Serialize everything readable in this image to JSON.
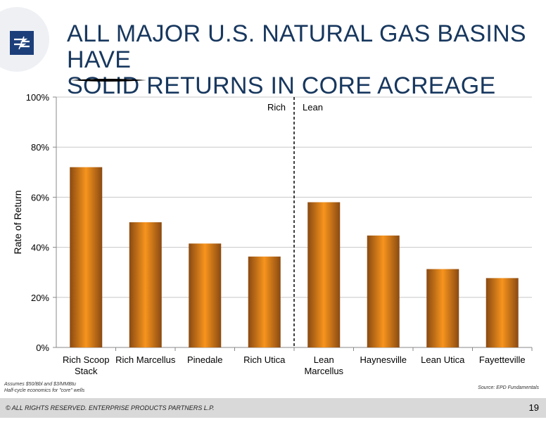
{
  "slide": {
    "title_line1": "ALL MAJOR U.S. NATURAL GAS BASINS HAVE",
    "title_line2": "SOLID RETURNS IN CORE ACREAGE",
    "footnote_line1": "Assumes $50/Bbl and $3/MMBtu",
    "footnote_line2": "Half-cycle economics for \"core\" wells",
    "source": "Source:  EPD Fundamentals",
    "copyright": "© ALL RIGHTS RESERVED. ENTERPRISE PRODUCTS PARTNERS L.P.",
    "page_number": "19"
  },
  "colors": {
    "title": "#17375e",
    "logo": "#1c3f7a",
    "bar_edge": "#8a4a12",
    "bar_center": "#f7941d",
    "footer": "#d9d9d9"
  },
  "chart_data": {
    "type": "bar",
    "categories": [
      [
        "Rich Scoop",
        "Stack"
      ],
      [
        "Rich Marcellus"
      ],
      [
        "Pinedale"
      ],
      [
        "Rich Utica"
      ],
      [
        "Lean",
        "Marcellus"
      ],
      [
        "Haynesville"
      ],
      [
        "Lean Utica"
      ],
      [
        "Fayetteville"
      ]
    ],
    "values": [
      0.72,
      0.5,
      0.415,
      0.363,
      0.58,
      0.447,
      0.313,
      0.277
    ],
    "ylabel": "Rate of Return",
    "ylim": [
      0,
      1
    ],
    "yticks": [
      0,
      0.2,
      0.4,
      0.6,
      0.8,
      1.0
    ],
    "ytick_labels": [
      "0%",
      "20%",
      "40%",
      "60%",
      "80%",
      "100%"
    ],
    "grid": true,
    "divider": {
      "after_category_index": 3,
      "left_label": "Rich",
      "right_label": "Lean"
    }
  }
}
